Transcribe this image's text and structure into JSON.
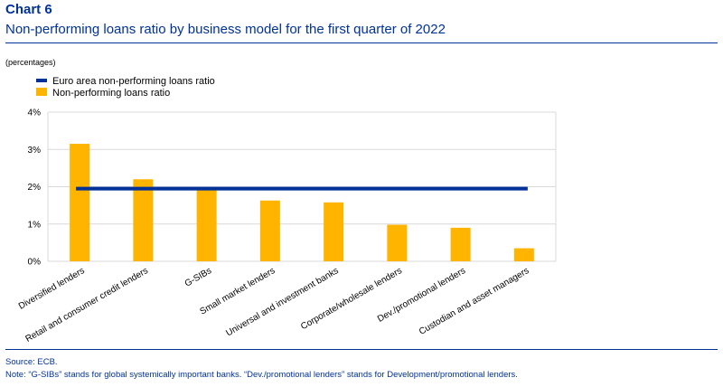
{
  "header": {
    "chart_label": "Chart 6",
    "title": "Non-performing loans ratio by business model for the first quarter of 2022",
    "units": "(percentages)"
  },
  "footer": {
    "source": "Source: ECB.",
    "note": "Note: “G-SIBs” stands for global systemically important banks. “Dev./promotional lenders” stands for Development/promotional lenders."
  },
  "colors": {
    "bar": "#FFB400",
    "line": "#003299",
    "grid": "#d9d9d9",
    "title": "#003299"
  },
  "chart_data": {
    "type": "bar",
    "title": "Non-performing loans ratio by business model for the first quarter of 2022",
    "ylabel": "",
    "xlabel": "",
    "ylim": [
      0,
      4
    ],
    "yticks": [
      "0%",
      "1%",
      "2%",
      "3%",
      "4%"
    ],
    "grid": true,
    "legend_position": "top-left",
    "categories": [
      "Diversified lenders",
      "Retail and consumer credit lenders",
      "G-SIBs",
      "Small market lenders",
      "Universal and investment banks",
      "Corporate/wholesale lenders",
      "Dev./promotional lenders",
      "Custodian and asset managers"
    ],
    "series": [
      {
        "name": "Non-performing loans ratio",
        "type": "bar",
        "values": [
          3.15,
          2.2,
          1.95,
          1.63,
          1.58,
          0.98,
          0.9,
          0.35
        ]
      },
      {
        "name": "Euro area non-performing loans ratio",
        "type": "line",
        "values": [
          1.95,
          1.95,
          1.95,
          1.95,
          1.95,
          1.95,
          1.95,
          1.95
        ]
      }
    ]
  }
}
